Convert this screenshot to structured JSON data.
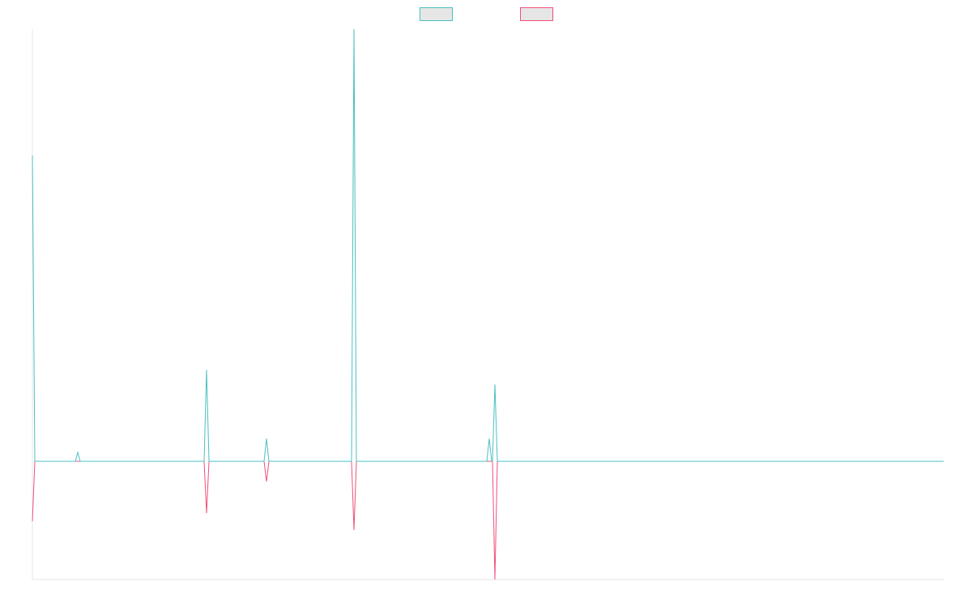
{
  "chart_data": {
    "type": "line",
    "x": [
      0,
      3,
      53,
      56,
      59,
      212,
      215,
      218,
      286,
      289,
      292,
      394,
      397,
      400,
      561,
      564,
      567,
      568,
      571,
      574,
      1125
    ],
    "series": [
      {
        "color": "#4bc0c0",
        "fill": "#e6e6e6",
        "values": [
          378,
          0,
          0,
          11,
          0,
          0,
          113,
          0,
          0,
          28,
          0,
          0,
          534,
          0,
          0,
          28,
          0,
          0,
          95,
          0,
          0
        ]
      },
      {
        "color": "#f0507a",
        "fill": "#e6e6e6",
        "values": [
          -74,
          0,
          0,
          0,
          0,
          0,
          -64,
          0,
          0,
          -25,
          0,
          0,
          -85,
          0,
          0,
          0,
          0,
          0,
          -146,
          0,
          0
        ]
      }
    ],
    "xlim": [
      0,
      1125
    ],
    "ylim": [
      -146,
      534
    ],
    "grid": false
  }
}
